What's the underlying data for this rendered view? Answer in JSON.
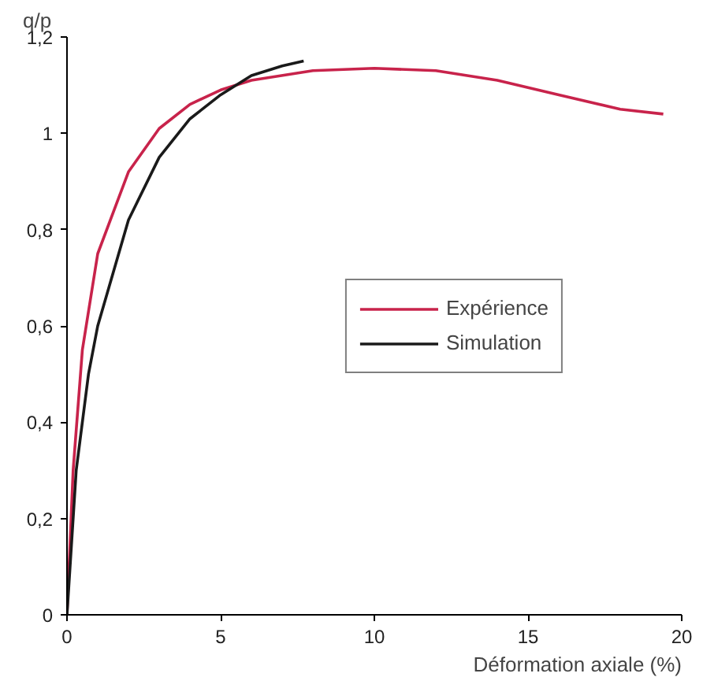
{
  "chart_data": {
    "type": "line",
    "xlabel": "Déformation axiale (%)",
    "ylabel": "q/p",
    "xlim": [
      0,
      20
    ],
    "ylim": [
      0,
      1.2
    ],
    "xticks": [
      0,
      5,
      10,
      15,
      20
    ],
    "yticks": [
      0,
      {
        "value": 0.2,
        "label": "0,2"
      },
      {
        "value": 0.4,
        "label": "0,4"
      },
      {
        "value": 0.6,
        "label": "0,6"
      },
      {
        "value": 0.8,
        "label": "0,8"
      },
      1,
      {
        "value": 1.2,
        "label": "1,2"
      }
    ],
    "grid": false,
    "legend": "center right",
    "marker": "none",
    "line_style": "solid",
    "series": [
      {
        "name": "Expérience",
        "color": "#c8234b",
        "x": [
          0,
          0.2,
          0.5,
          1,
          2,
          3,
          4,
          5,
          6,
          8,
          10,
          12,
          14,
          16,
          18,
          19.4
        ],
        "values": [
          0,
          0.3,
          0.55,
          0.75,
          0.92,
          1.01,
          1.06,
          1.09,
          1.11,
          1.13,
          1.135,
          1.13,
          1.11,
          1.08,
          1.05,
          1.04
        ]
      },
      {
        "name": "Simulation",
        "color": "#1a1a1a",
        "x": [
          0,
          0.3,
          0.7,
          1,
          2,
          3,
          4,
          5,
          6,
          7,
          7.7
        ],
        "values": [
          0,
          0.3,
          0.5,
          0.6,
          0.82,
          0.95,
          1.03,
          1.08,
          1.12,
          1.14,
          1.15
        ]
      }
    ]
  }
}
